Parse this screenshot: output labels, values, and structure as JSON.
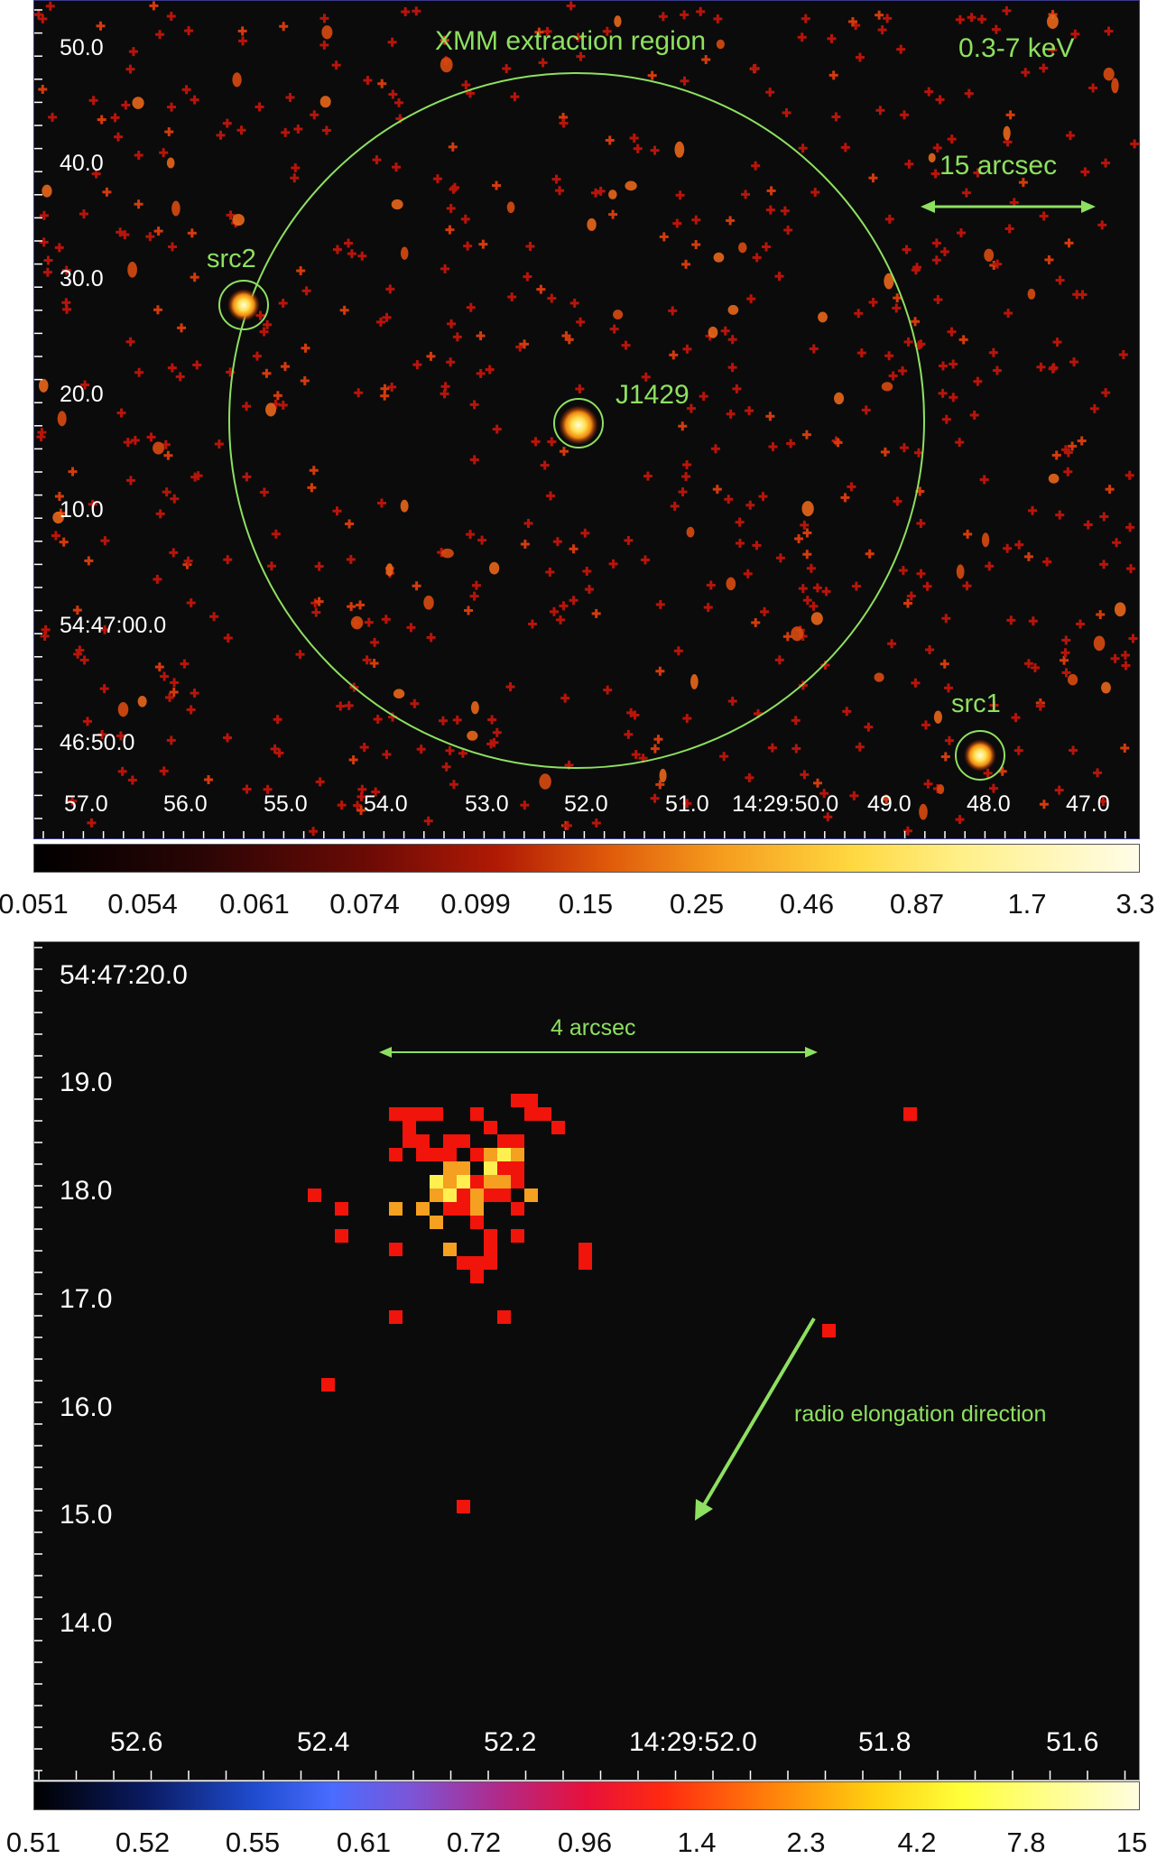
{
  "top_panel": {
    "y_labels": [
      "50.0",
      "40.0",
      "30.0",
      "20.0",
      "10.0",
      "54:47:00.0",
      "46:50.0"
    ],
    "x_labels": [
      "57.0",
      "56.0",
      "55.0",
      "54.0",
      "53.0",
      "52.0",
      "51.0",
      "14:29:50.0",
      "49.0",
      "48.0",
      "47.0"
    ],
    "energy_label": "0.3-7 keV",
    "region_label": "XMM extraction region",
    "scale_label": "15 arcsec",
    "sources": {
      "src2": "src2",
      "target": "J1429",
      "src1": "src1"
    },
    "overlay_color": "#8ee060"
  },
  "colorbar_top": {
    "ticks": [
      "0.051",
      "0.054",
      "0.061",
      "0.074",
      "0.099",
      "0.15",
      "0.25",
      "0.46",
      "0.87",
      "1.7",
      "3.3"
    ]
  },
  "bottom_panel": {
    "y_labels": [
      "54:47:20.0",
      "19.0",
      "18.0",
      "17.0",
      "16.0",
      "15.0",
      "14.0"
    ],
    "x_labels": [
      "52.6",
      "52.4",
      "52.2",
      "14:29:52.0",
      "51.8",
      "51.6"
    ],
    "scale_label": "4 arcsec",
    "direction_label": "radio elongation direction"
  },
  "colorbar_bottom": {
    "ticks": [
      "0.51",
      "0.52",
      "0.55",
      "0.61",
      "0.72",
      "0.96",
      "1.4",
      "2.3",
      "4.2",
      "7.8",
      "15"
    ]
  }
}
